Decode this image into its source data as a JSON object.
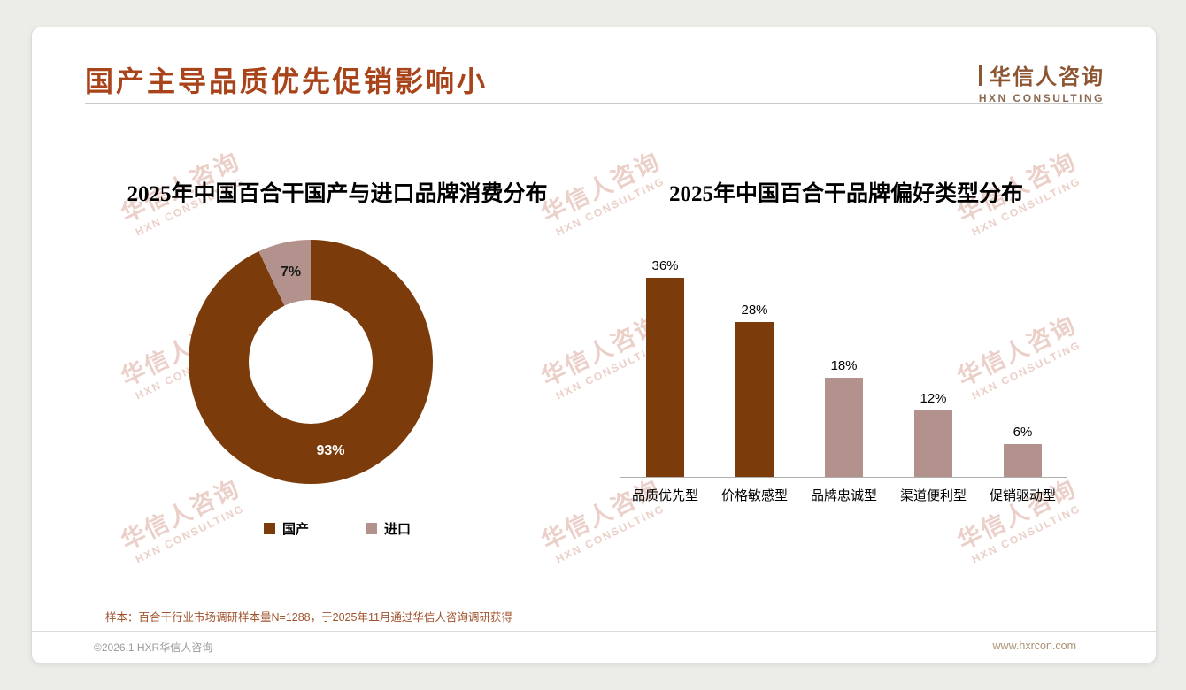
{
  "page": {
    "title": "国产主导品质优先促销影响小",
    "logo": {
      "zh": "华信人咨询",
      "en": "HXN CONSULTING"
    },
    "watermark": {
      "zh": "华信人咨询",
      "en": "HXN CONSULTING"
    },
    "note": "样本：百合干行业市场调研样本量N=1288，于2025年11月通过华信人咨询调研获得",
    "footer": {
      "left": "©2026.1 HXR华信人咨询",
      "right": "www.hxrcon.com"
    }
  },
  "colors": {
    "title": "#A8431A",
    "brand_brown": "#8C5633",
    "primary_dark_brown": "#7B3B0A",
    "secondary_mauve": "#B3928D",
    "watermark": "#E3BDB3",
    "note": "#A0522D"
  },
  "chart_data": [
    {
      "type": "pie",
      "donut": true,
      "title": "2025年中国百合干国产与进口品牌消费分布",
      "labels": [
        "国产",
        "进口"
      ],
      "values": [
        93,
        7
      ],
      "value_labels": [
        "93%",
        "7%"
      ],
      "value_label_colors": [
        "#FFFFFF",
        "#1A1A1A"
      ],
      "colors": [
        "#7B3B0A",
        "#B3928D"
      ],
      "legend_position": "bottom"
    },
    {
      "type": "bar",
      "title": "2025年中国百合干品牌偏好类型分布",
      "categories": [
        "品质优先型",
        "价格敏感型",
        "品牌忠诚型",
        "渠道便利型",
        "促销驱动型"
      ],
      "values": [
        36,
        28,
        18,
        12,
        6
      ],
      "value_labels": [
        "36%",
        "28%",
        "18%",
        "12%",
        "6%"
      ],
      "colors": [
        "#7B3B0A",
        "#7B3B0A",
        "#B3928D",
        "#B3928D",
        "#B3928D"
      ],
      "ylim": [
        0,
        40
      ],
      "grid": false,
      "legend_position": "none"
    }
  ]
}
